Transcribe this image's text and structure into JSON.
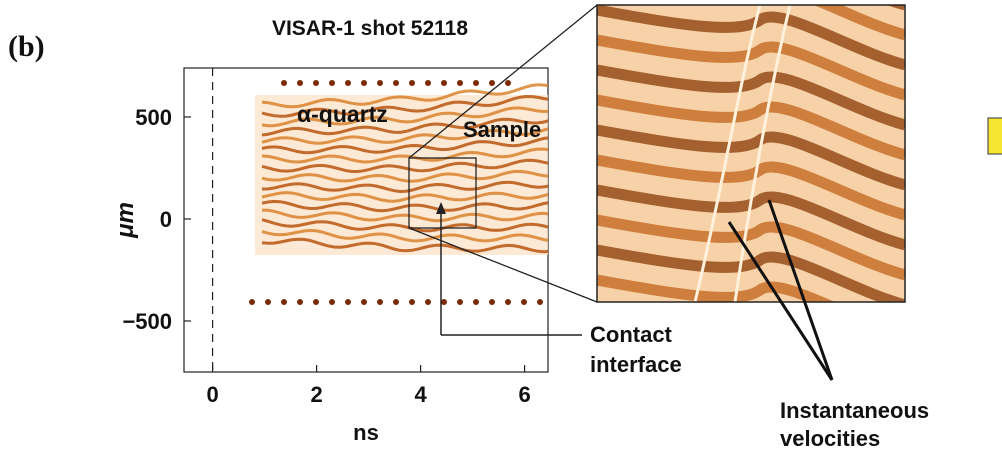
{
  "chart_data": {
    "type": "streak",
    "panel_label": "(b)",
    "title": "VISAR-1 shot 52118",
    "x_label": "ns",
    "y_label": "μm",
    "xlim": [
      -0.55,
      6.45
    ],
    "ylim": [
      -750,
      740
    ],
    "xticks": [
      0,
      2,
      4,
      6
    ],
    "yticks": [
      {
        "value": -500,
        "label": "−500"
      },
      0,
      500
    ],
    "annotations": [
      "α-quartz",
      "Sample",
      "Contact interface",
      "Instantaneous velocities"
    ]
  }
}
